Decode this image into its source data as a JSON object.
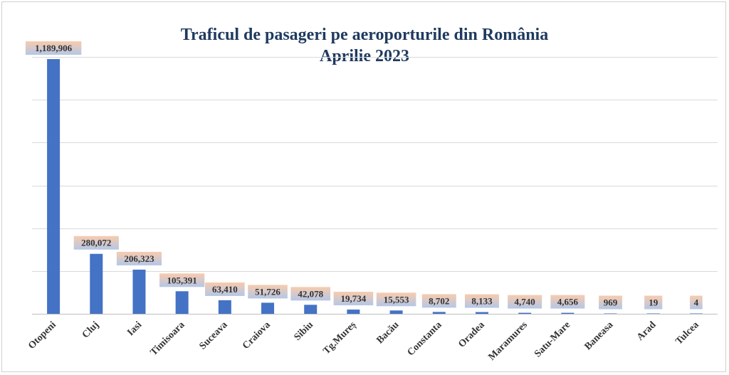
{
  "chart_data": {
    "type": "bar",
    "title": "Traficul de pasageri pe aeroporturile din România",
    "subtitle": "Aprilie 2023",
    "xlabel": "",
    "ylabel": "",
    "ylim": [
      0,
      1200000
    ],
    "grid": true,
    "categories": [
      "Otopeni",
      "Cluj",
      "Iasi",
      "Timisoara",
      "Suceava",
      "Craiova",
      "Sibiu",
      "Tg.Mureș",
      "Bacău",
      "Constanta",
      "Oradea",
      "Maramures",
      "Satu-Mare",
      "Baneasa",
      "Arad",
      "Tulcea"
    ],
    "values": [
      1189906,
      280072,
      206323,
      105391,
      63410,
      51726,
      42078,
      19734,
      15553,
      8702,
      8133,
      4740,
      4656,
      969,
      19,
      4
    ],
    "labels": [
      "1,189,906",
      "280,072",
      "206,323",
      "105,391",
      "63,410",
      "51,726",
      "42,078",
      "19,734",
      "15,553",
      "8,702",
      "8,133",
      "4,740",
      "4,656",
      "969",
      "19",
      "4"
    ],
    "colors": {
      "bar": "#4472c4",
      "label_bg_top": "#f8cbad",
      "label_bg_bottom": "#b4c7e7",
      "grid": "#d9d9d9",
      "title": "#1f3a5f",
      "text": "#333333"
    }
  }
}
